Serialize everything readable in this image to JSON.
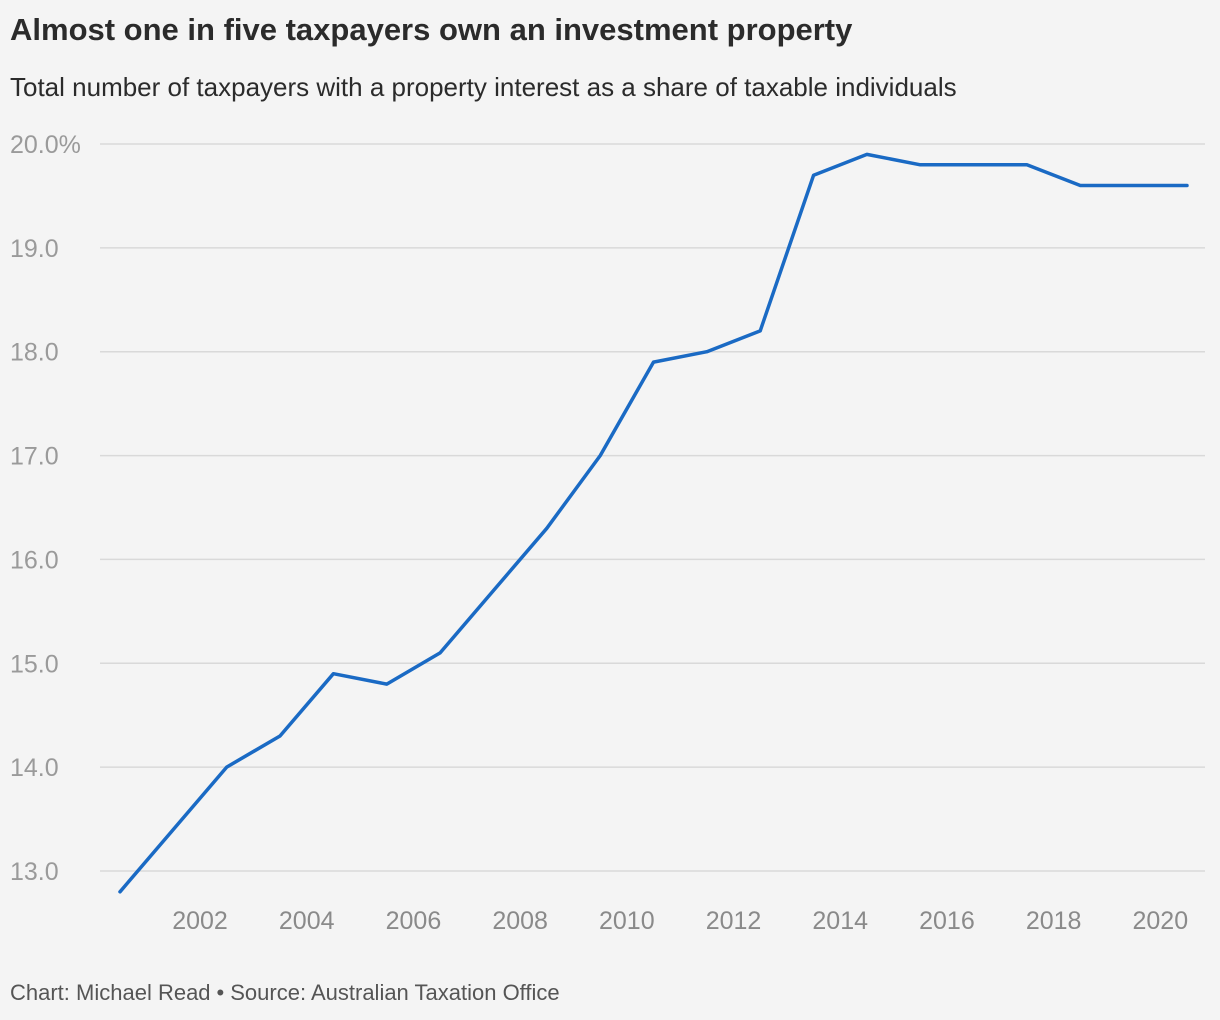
{
  "header": {
    "title": "Almost one in five taxpayers own an investment property",
    "subtitle": "Total number of taxpayers with a property interest as a share of taxable individuals"
  },
  "footer": {
    "chart_credit": "Chart: Michael Read",
    "separator": "•",
    "source": "Source: Australian Taxation Office"
  },
  "colors": {
    "line": "#1a6ac4",
    "grid": "#d9d9d9",
    "background": "#f4f4f4"
  },
  "chart_data": {
    "type": "line",
    "title": "Almost one in five taxpayers own an investment property",
    "subtitle": "Total number of taxpayers with a property interest as a share of taxable individuals",
    "xlabel": "",
    "ylabel": "",
    "ylim": [
      13.0,
      20.0
    ],
    "xlim": [
      2000.5,
      2020.5
    ],
    "grid": true,
    "legend": "none",
    "y_ticks": [
      {
        "value": 20,
        "label": "20.0%"
      },
      {
        "value": 19,
        "label": "19.0"
      },
      {
        "value": 18,
        "label": "18.0"
      },
      {
        "value": 17,
        "label": "17.0"
      },
      {
        "value": 16,
        "label": "16.0"
      },
      {
        "value": 15,
        "label": "15.0"
      },
      {
        "value": 14,
        "label": "14.0"
      },
      {
        "value": 13,
        "label": "13.0"
      }
    ],
    "x_ticks": [
      {
        "value": 2002,
        "label": "2002"
      },
      {
        "value": 2004,
        "label": "2004"
      },
      {
        "value": 2006,
        "label": "2006"
      },
      {
        "value": 2008,
        "label": "2008"
      },
      {
        "value": 2010,
        "label": "2010"
      },
      {
        "value": 2012,
        "label": "2012"
      },
      {
        "value": 2014,
        "label": "2014"
      },
      {
        "value": 2016,
        "label": "2016"
      },
      {
        "value": 2018,
        "label": "2018"
      },
      {
        "value": 2020,
        "label": "2020"
      }
    ],
    "series": [
      {
        "color": "#1a6ac4",
        "x": [
          2000.5,
          2001.5,
          2002.5,
          2003.5,
          2004.5,
          2005.5,
          2006.5,
          2007.5,
          2008.5,
          2009.5,
          2010.5,
          2011.5,
          2012.5,
          2013.5,
          2014.5,
          2015.5,
          2016.5,
          2017.5,
          2018.5,
          2019.5,
          2020.5
        ],
        "values": [
          12.8,
          13.4,
          14.0,
          14.3,
          14.9,
          14.8,
          15.1,
          15.7,
          16.3,
          17.0,
          17.9,
          18.0,
          18.2,
          19.7,
          19.9,
          19.8,
          19.8,
          19.8,
          19.6,
          19.6,
          19.6
        ]
      }
    ]
  }
}
